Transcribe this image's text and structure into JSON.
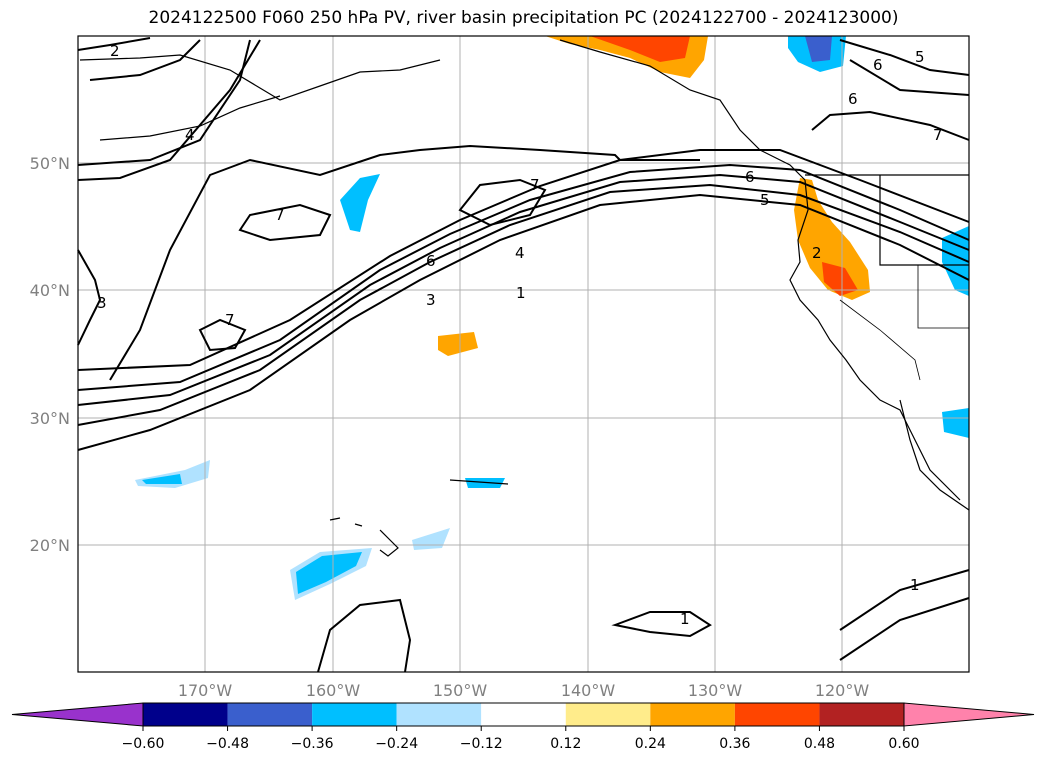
{
  "title": "2024122500 F060 250 hPa PV, river basin precipitation PC (2024122700 - 2024123000)",
  "lat_labels": [
    "50°N",
    "40°N",
    "30°N",
    "20°N"
  ],
  "lon_labels": [
    "170°W",
    "160°W",
    "150°W",
    "140°W",
    "130°W",
    "120°W"
  ],
  "contour_labels": [
    "1",
    "1",
    "1",
    "2",
    "2",
    "3",
    "3",
    "4",
    "4",
    "5",
    "5",
    "6",
    "6",
    "6",
    "6",
    "7",
    "7",
    "7",
    "7"
  ],
  "colorbar": {
    "ticks": [
      "−0.60",
      "−0.48",
      "−0.36",
      "−0.24",
      "−0.12",
      "0.12",
      "0.24",
      "0.36",
      "0.48",
      "0.60"
    ],
    "colors": [
      "#9932cc",
      "#00008b",
      "#3a5fcd",
      "#00bfff",
      "#b0e2ff",
      "#ffffff",
      "#ffec8b",
      "#ffa500",
      "#ff4500",
      "#b22222",
      "#ff82ab"
    ]
  }
}
